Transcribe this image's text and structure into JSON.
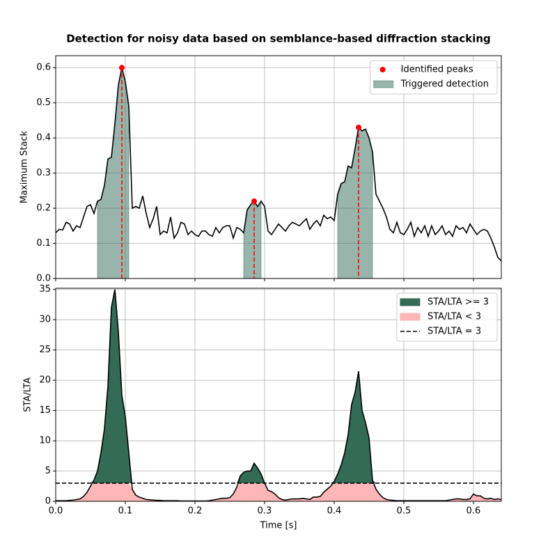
{
  "chart_data": [
    {
      "type": "line",
      "title": "Detection for noisy data based on semblance-based diffraction stacking",
      "ylabel": "Maximum Stack",
      "color": "#000000",
      "x": [
        0,
        0.005,
        0.01,
        0.015,
        0.02,
        0.025,
        0.03,
        0.035,
        0.04,
        0.045,
        0.05,
        0.055,
        0.06,
        0.065,
        0.07,
        0.075,
        0.08,
        0.085,
        0.09,
        0.095,
        0.1,
        0.105,
        0.11,
        0.115,
        0.12,
        0.125,
        0.13,
        0.135,
        0.14,
        0.145,
        0.15,
        0.155,
        0.16,
        0.165,
        0.17,
        0.175,
        0.18,
        0.185,
        0.19,
        0.195,
        0.2,
        0.205,
        0.21,
        0.215,
        0.22,
        0.225,
        0.23,
        0.235,
        0.24,
        0.245,
        0.25,
        0.255,
        0.26,
        0.265,
        0.27,
        0.275,
        0.28,
        0.285,
        0.29,
        0.295,
        0.3,
        0.305,
        0.31,
        0.315,
        0.32,
        0.325,
        0.33,
        0.335,
        0.34,
        0.345,
        0.35,
        0.355,
        0.36,
        0.365,
        0.37,
        0.375,
        0.38,
        0.385,
        0.39,
        0.395,
        0.4,
        0.405,
        0.41,
        0.415,
        0.42,
        0.425,
        0.43,
        0.435,
        0.44,
        0.445,
        0.45,
        0.455,
        0.46,
        0.465,
        0.47,
        0.475,
        0.48,
        0.485,
        0.49,
        0.495,
        0.5,
        0.505,
        0.51,
        0.515,
        0.52,
        0.525,
        0.53,
        0.535,
        0.54,
        0.545,
        0.55,
        0.555,
        0.56,
        0.565,
        0.57,
        0.575,
        0.58,
        0.585,
        0.59,
        0.595,
        0.6,
        0.605,
        0.61,
        0.615,
        0.62,
        0.625,
        0.63,
        0.635,
        0.64
      ],
      "values": [
        0.13,
        0.14,
        0.138,
        0.16,
        0.155,
        0.135,
        0.15,
        0.145,
        0.175,
        0.205,
        0.21,
        0.185,
        0.22,
        0.225,
        0.265,
        0.34,
        0.345,
        0.44,
        0.55,
        0.6,
        0.56,
        0.49,
        0.2,
        0.205,
        0.2,
        0.235,
        0.185,
        0.145,
        0.17,
        0.205,
        0.125,
        0.135,
        0.13,
        0.175,
        0.115,
        0.13,
        0.16,
        0.155,
        0.125,
        0.135,
        0.125,
        0.12,
        0.135,
        0.135,
        0.125,
        0.12,
        0.145,
        0.13,
        0.145,
        0.15,
        0.15,
        0.115,
        0.145,
        0.14,
        0.13,
        0.195,
        0.21,
        0.22,
        0.205,
        0.22,
        0.205,
        0.135,
        0.125,
        0.14,
        0.155,
        0.145,
        0.135,
        0.15,
        0.16,
        0.155,
        0.15,
        0.16,
        0.17,
        0.14,
        0.155,
        0.165,
        0.15,
        0.18,
        0.17,
        0.175,
        0.165,
        0.24,
        0.27,
        0.275,
        0.32,
        0.315,
        0.37,
        0.43,
        0.42,
        0.425,
        0.4,
        0.36,
        0.24,
        0.22,
        0.2,
        0.175,
        0.14,
        0.13,
        0.16,
        0.13,
        0.125,
        0.14,
        0.16,
        0.12,
        0.145,
        0.13,
        0.15,
        0.12,
        0.15,
        0.125,
        0.135,
        0.15,
        0.125,
        0.135,
        0.12,
        0.15,
        0.14,
        0.145,
        0.13,
        0.155,
        0.14,
        0.125,
        0.135,
        0.14,
        0.135,
        0.115,
        0.09,
        0.06,
        0.05
      ],
      "peaks": {
        "name": "Identified peaks",
        "color": "#ff0000",
        "x": [
          0.095,
          0.285,
          0.435
        ],
        "values": [
          0.6,
          0.22,
          0.43
        ]
      },
      "detections": {
        "name": "Triggered detection",
        "color": "#336b57",
        "ranges": [
          [
            0.06,
            0.105
          ],
          [
            0.27,
            0.295
          ],
          [
            0.405,
            0.455
          ]
        ]
      },
      "xlim": [
        0,
        0.64
      ],
      "xticks": [
        {
          "value": 0,
          "label": "0.0"
        },
        0.1,
        0.2,
        0.3,
        0.4,
        0.5,
        0.6
      ],
      "ylim": [
        0,
        0.634
      ],
      "yticks": [
        {
          "value": 0,
          "label": "0.0"
        },
        0.1,
        0.2,
        0.3,
        0.4,
        0.5,
        0.6
      ],
      "grid": true,
      "legend": "upper right"
    },
    {
      "type": "line",
      "ylabel": "STA/LTA",
      "xlabel": "Time [s]",
      "color": "#000000",
      "x": [
        0,
        0.005,
        0.01,
        0.015,
        0.02,
        0.025,
        0.03,
        0.035,
        0.04,
        0.045,
        0.05,
        0.055,
        0.06,
        0.065,
        0.07,
        0.075,
        0.08,
        0.085,
        0.09,
        0.095,
        0.1,
        0.105,
        0.11,
        0.115,
        0.12,
        0.125,
        0.13,
        0.135,
        0.14,
        0.145,
        0.15,
        0.155,
        0.16,
        0.165,
        0.17,
        0.175,
        0.18,
        0.185,
        0.19,
        0.195,
        0.2,
        0.205,
        0.21,
        0.215,
        0.22,
        0.225,
        0.23,
        0.235,
        0.24,
        0.245,
        0.25,
        0.255,
        0.26,
        0.265,
        0.27,
        0.275,
        0.28,
        0.285,
        0.29,
        0.295,
        0.3,
        0.305,
        0.31,
        0.315,
        0.32,
        0.325,
        0.33,
        0.335,
        0.34,
        0.345,
        0.35,
        0.355,
        0.36,
        0.365,
        0.37,
        0.375,
        0.38,
        0.385,
        0.39,
        0.395,
        0.4,
        0.405,
        0.41,
        0.415,
        0.42,
        0.425,
        0.43,
        0.435,
        0.44,
        0.445,
        0.45,
        0.455,
        0.46,
        0.465,
        0.47,
        0.475,
        0.48,
        0.485,
        0.49,
        0.495,
        0.5,
        0.505,
        0.51,
        0.515,
        0.52,
        0.525,
        0.53,
        0.535,
        0.54,
        0.545,
        0.55,
        0.555,
        0.56,
        0.565,
        0.57,
        0.575,
        0.58,
        0.585,
        0.59,
        0.595,
        0.6,
        0.605,
        0.61,
        0.615,
        0.62,
        0.625,
        0.63,
        0.635,
        0.64
      ],
      "values": [
        0.1,
        0.1,
        0.1,
        0.1,
        0.15,
        0.2,
        0.3,
        0.4,
        0.8,
        1.5,
        2.5,
        3.5,
        5,
        8,
        12,
        19,
        32,
        35,
        28,
        17.5,
        14,
        8,
        2,
        1,
        0.7,
        0.5,
        0.3,
        0.25,
        0.2,
        0.15,
        0.15,
        0.1,
        0.1,
        0.1,
        0.1,
        0.1,
        0.05,
        0.05,
        0.05,
        0.05,
        0.05,
        0.05,
        0.05,
        0.05,
        0.1,
        0.2,
        0.3,
        0.4,
        0.5,
        0.5,
        0.6,
        1.2,
        2.3,
        4.2,
        4.8,
        5,
        5,
        6.3,
        5.5,
        4.5,
        3,
        1.8,
        1.6,
        1.2,
        0.6,
        0.3,
        0.2,
        0.3,
        0.4,
        0.4,
        0.4,
        0.5,
        0.4,
        0.3,
        0.7,
        0.7,
        0.8,
        1.5,
        2,
        2.5,
        3.3,
        4.5,
        6,
        8,
        11,
        16,
        18,
        21.5,
        15,
        13,
        10.5,
        3.5,
        2,
        1.2,
        0.6,
        0.3,
        0.2,
        0.15,
        0.1,
        0.1,
        0.1,
        0.1,
        0.1,
        0.1,
        0.1,
        0.1,
        0.1,
        0.1,
        0.1,
        0.1,
        0.1,
        0.1,
        0.1,
        0.2,
        0.3,
        0.4,
        0.4,
        0.3,
        0.3,
        0.4,
        1.2,
        0.9,
        0.9,
        0.5,
        0.4,
        0.5,
        0.3,
        0.4,
        0.3
      ],
      "above": {
        "name": "STA/LTA >= 3",
        "color": "#336b57"
      },
      "below": {
        "name": "STA/LTA < 3",
        "color": "#ffb6b6"
      },
      "threshold": {
        "name": "STA/LTA = 3",
        "value": 3,
        "color": "#000000"
      },
      "xlim": [
        0,
        0.64
      ],
      "xticks": [
        {
          "value": 0,
          "label": "0.0"
        },
        0.1,
        0.2,
        0.3,
        0.4,
        0.5,
        0.6
      ],
      "ylim": [
        0,
        35.2
      ],
      "yticks": [
        0,
        5,
        10,
        15,
        20,
        25,
        30,
        35
      ],
      "grid": true,
      "legend": "upper right"
    }
  ]
}
